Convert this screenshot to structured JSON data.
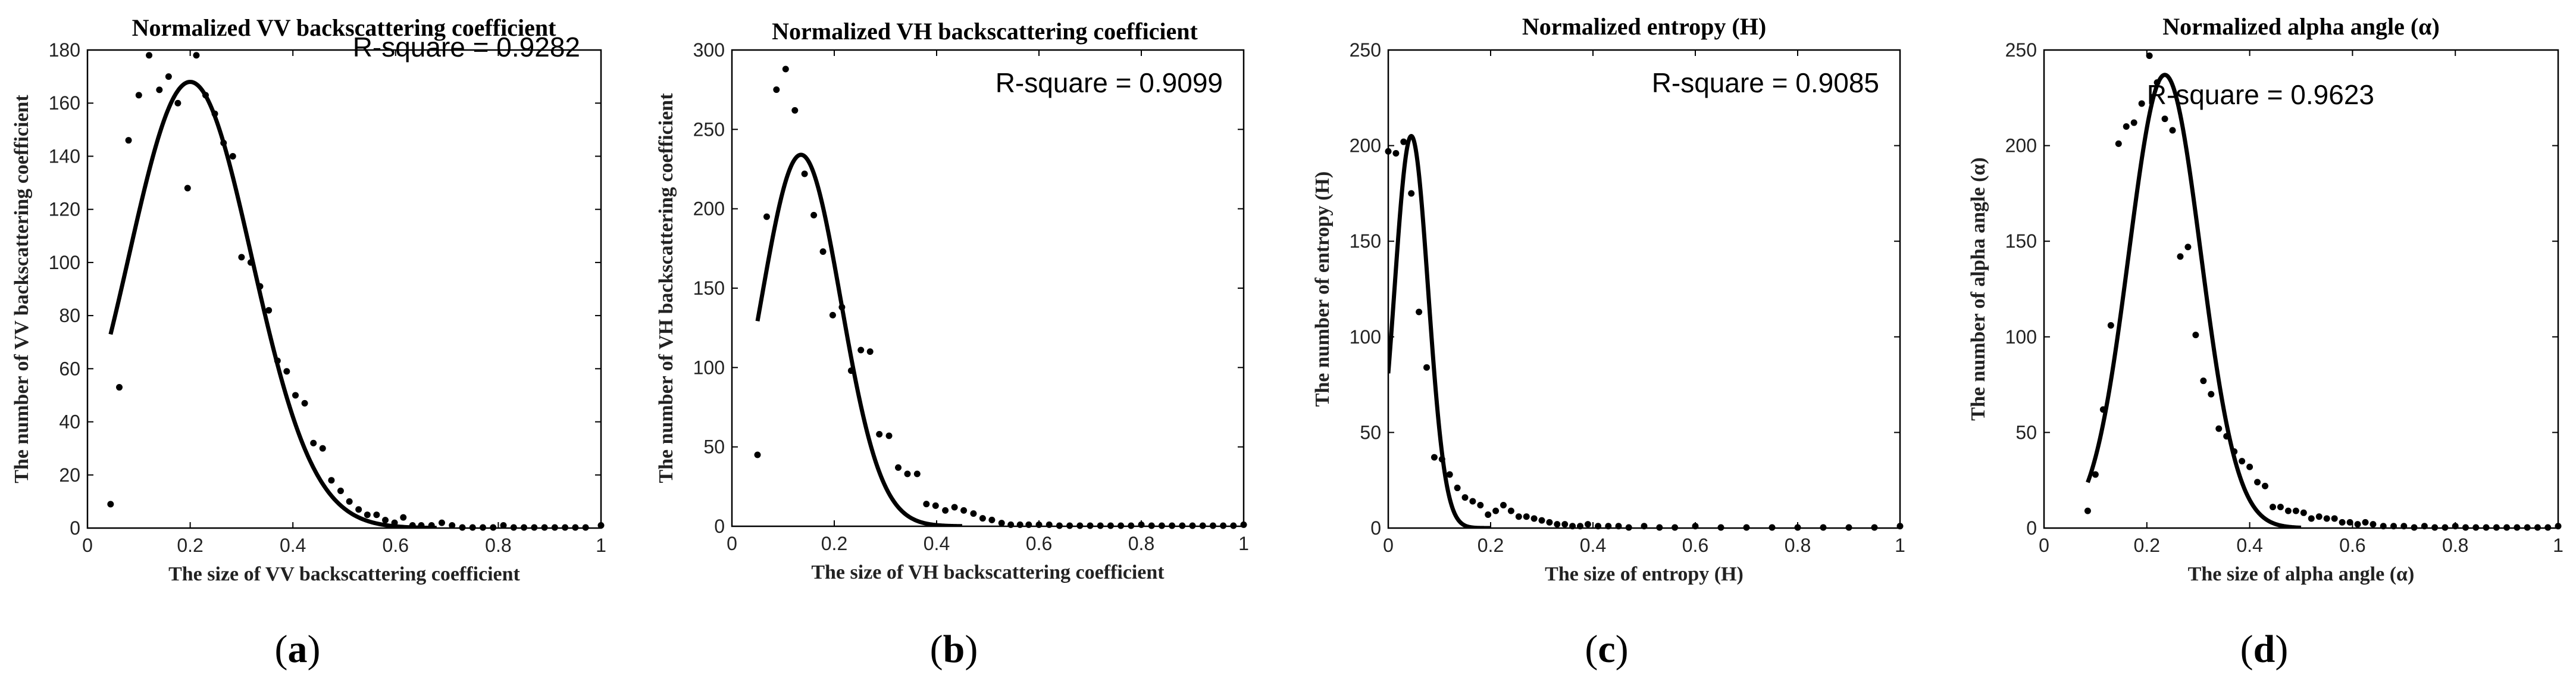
{
  "chart_data": [
    {
      "type": "scatter",
      "panel": "(a)",
      "panel_letter": "a",
      "title": "Normalized VV backscattering coefficient",
      "xlabel": "The size of VV backscattering coefficient",
      "ylabel": "The number of VV backscattering coefficient",
      "annotation": "R-square = 0.9282",
      "xlim": [
        0,
        1
      ],
      "ylim": [
        0,
        180
      ],
      "xticks": [
        0,
        0.2,
        0.4,
        0.6,
        0.8,
        1
      ],
      "xtick_labels": [
        "0",
        "0.2",
        "0.4",
        "0.6",
        "0.8",
        "1"
      ],
      "yticks": [
        0,
        20,
        40,
        60,
        80,
        100,
        120,
        140,
        160,
        180
      ],
      "ytick_labels": [
        "0",
        "20",
        "40",
        "60",
        "80",
        "100",
        "120",
        "140",
        "160",
        "180"
      ],
      "fit": {
        "model": "gaussian",
        "a": 168,
        "mu": 0.2,
        "sigma": 0.12,
        "x_range": [
          0.045,
          0.68
        ]
      },
      "points": {
        "x": [
          0.045,
          0.062,
          0.08,
          0.1,
          0.12,
          0.14,
          0.158,
          0.176,
          0.195,
          0.212,
          0.23,
          0.248,
          0.265,
          0.283,
          0.3,
          0.318,
          0.336,
          0.353,
          0.37,
          0.388,
          0.405,
          0.423,
          0.44,
          0.458,
          0.475,
          0.493,
          0.51,
          0.528,
          0.545,
          0.563,
          0.58,
          0.598,
          0.615,
          0.633,
          0.65,
          0.67,
          0.69,
          0.71,
          0.73,
          0.75,
          0.77,
          0.79,
          0.81,
          0.83,
          0.85,
          0.87,
          0.89,
          0.91,
          0.93,
          0.95,
          0.97,
          1.0
        ],
        "y": [
          9,
          53,
          146,
          163,
          178,
          165,
          170,
          160,
          128,
          178,
          163,
          156,
          145,
          140,
          102,
          100,
          91,
          82,
          63,
          59,
          50,
          47,
          32,
          30,
          18,
          14,
          10,
          7,
          5,
          5,
          3,
          2,
          4,
          1,
          1,
          1,
          2,
          1,
          0,
          0,
          0,
          0,
          1,
          0,
          0,
          0,
          0,
          0,
          0,
          0,
          0,
          1
        ]
      }
    },
    {
      "type": "scatter",
      "panel": "(b)",
      "panel_letter": "b",
      "title": "Normalized VH backscattering coefficient",
      "xlabel": "The size of VH backscattering coefficient",
      "ylabel": "The number of VH backscattering coefficient",
      "annotation": "R-square = 0.9099",
      "xlim": [
        0,
        1
      ],
      "ylim": [
        0,
        300
      ],
      "xticks": [
        0,
        0.2,
        0.4,
        0.6,
        0.8,
        1
      ],
      "xtick_labels": [
        "0",
        "0.2",
        "0.4",
        "0.6",
        "0.8",
        "1"
      ],
      "yticks": [
        0,
        50,
        100,
        150,
        200,
        250,
        300
      ],
      "ytick_labels": [
        "0",
        "50",
        "100",
        "150",
        "200",
        "250",
        "300"
      ],
      "fit": {
        "model": "gaussian",
        "a": 234,
        "mu": 0.135,
        "sigma": 0.078,
        "x_range": [
          0.05,
          0.45
        ]
      },
      "points": {
        "x": [
          0.05,
          0.068,
          0.087,
          0.105,
          0.123,
          0.142,
          0.16,
          0.178,
          0.197,
          0.215,
          0.233,
          0.252,
          0.27,
          0.288,
          0.307,
          0.325,
          0.343,
          0.362,
          0.38,
          0.398,
          0.417,
          0.435,
          0.453,
          0.472,
          0.49,
          0.508,
          0.527,
          0.545,
          0.563,
          0.58,
          0.6,
          0.62,
          0.64,
          0.66,
          0.68,
          0.7,
          0.72,
          0.74,
          0.76,
          0.78,
          0.8,
          0.82,
          0.84,
          0.86,
          0.88,
          0.9,
          0.92,
          0.94,
          0.96,
          0.98,
          1.0
        ],
        "y": [
          45,
          195,
          275,
          288,
          262,
          222,
          196,
          173,
          133,
          138,
          98,
          111,
          110,
          58,
          57,
          37,
          33,
          33,
          14,
          13,
          10,
          12,
          10,
          8,
          5,
          4,
          2,
          1,
          1,
          1,
          1,
          1,
          0,
          0,
          0,
          0,
          0,
          0,
          0,
          0,
          1,
          0,
          0,
          0,
          0,
          0,
          0,
          0,
          0,
          0,
          1
        ]
      }
    },
    {
      "type": "scatter",
      "panel": "(c)",
      "panel_letter": "c",
      "title": "Normalized entropy (H)",
      "xlabel": "The size of entropy (H)",
      "ylabel": "The number of entropy (H)",
      "annotation": "R-square = 0.9085",
      "xlim": [
        0,
        1
      ],
      "ylim": [
        0,
        250
      ],
      "xticks": [
        0,
        0.2,
        0.4,
        0.6,
        0.8,
        1
      ],
      "xtick_labels": [
        "0",
        "0.2",
        "0.4",
        "0.6",
        "0.8",
        "1"
      ],
      "yticks": [
        0,
        50,
        100,
        150,
        200,
        250
      ],
      "ytick_labels": [
        "0",
        "50",
        "100",
        "150",
        "200",
        "250"
      ],
      "fit": {
        "model": "gaussian",
        "a": 205,
        "mu": 0.045,
        "sigma": 0.033,
        "x_range": [
          0.0,
          0.2
        ]
      },
      "points": {
        "x": [
          0.0,
          0.015,
          0.03,
          0.045,
          0.06,
          0.075,
          0.09,
          0.105,
          0.12,
          0.135,
          0.15,
          0.165,
          0.18,
          0.195,
          0.21,
          0.225,
          0.24,
          0.255,
          0.27,
          0.285,
          0.3,
          0.315,
          0.33,
          0.345,
          0.36,
          0.375,
          0.39,
          0.41,
          0.43,
          0.45,
          0.47,
          0.5,
          0.53,
          0.56,
          0.6,
          0.65,
          0.7,
          0.75,
          0.8,
          0.85,
          0.9,
          0.95,
          1.0
        ],
        "y": [
          197,
          196,
          202,
          175,
          113,
          84,
          37,
          36,
          28,
          21,
          16,
          14,
          12,
          7,
          9,
          12,
          9,
          6,
          6,
          5,
          4,
          3,
          2,
          2,
          1,
          1,
          2,
          1,
          1,
          1,
          0,
          1,
          0,
          0,
          1,
          0,
          0,
          0,
          0,
          0,
          0,
          0,
          1
        ]
      }
    },
    {
      "type": "scatter",
      "panel": "(d)",
      "panel_letter": "d",
      "title": "Normalized alpha angle (α)",
      "xlabel": "The size of alpha angle (α)",
      "ylabel": "The number of alpha angle (α)",
      "annotation": "R-square = 0.9623",
      "xlim": [
        0,
        1
      ],
      "ylim": [
        0,
        250
      ],
      "xticks": [
        0,
        0.2,
        0.4,
        0.6,
        0.8,
        1
      ],
      "xtick_labels": [
        "0",
        "0.2",
        "0.4",
        "0.6",
        "0.8",
        "1"
      ],
      "yticks": [
        0,
        50,
        100,
        150,
        200,
        250
      ],
      "ytick_labels": [
        "0",
        "50",
        "100",
        "150",
        "200",
        "250"
      ],
      "fit": {
        "model": "gaussian",
        "a": 237,
        "mu": 0.235,
        "sigma": 0.07,
        "x_range": [
          0.085,
          0.5
        ]
      },
      "points": {
        "x": [
          0.085,
          0.1,
          0.115,
          0.13,
          0.145,
          0.16,
          0.175,
          0.19,
          0.205,
          0.22,
          0.235,
          0.25,
          0.265,
          0.28,
          0.295,
          0.31,
          0.325,
          0.34,
          0.355,
          0.37,
          0.385,
          0.4,
          0.415,
          0.43,
          0.445,
          0.46,
          0.475,
          0.49,
          0.505,
          0.52,
          0.535,
          0.55,
          0.565,
          0.58,
          0.595,
          0.61,
          0.625,
          0.64,
          0.66,
          0.68,
          0.7,
          0.72,
          0.74,
          0.76,
          0.78,
          0.8,
          0.82,
          0.84,
          0.86,
          0.88,
          0.9,
          0.92,
          0.94,
          0.96,
          0.98,
          1.0
        ],
        "y": [
          9,
          28,
          62,
          106,
          201,
          210,
          212,
          222,
          247,
          233,
          214,
          208,
          142,
          147,
          101,
          77,
          70,
          52,
          48,
          40,
          35,
          32,
          24,
          22,
          11,
          11,
          9,
          9,
          8,
          5,
          6,
          5,
          5,
          3,
          3,
          2,
          3,
          2,
          1,
          1,
          1,
          0,
          1,
          0,
          0,
          1,
          0,
          0,
          0,
          0,
          0,
          0,
          0,
          0,
          0,
          1
        ]
      }
    }
  ]
}
